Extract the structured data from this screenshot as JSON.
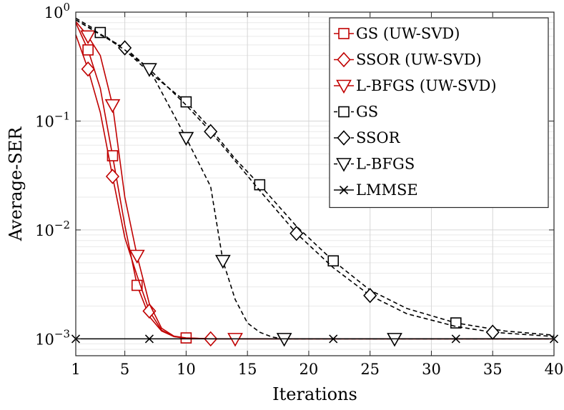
{
  "chart_data": {
    "type": "line",
    "xlabel": "Iterations",
    "ylabel": "Average-SER",
    "yscale": "log",
    "xlim": [
      1,
      40
    ],
    "ylim": [
      0.0007,
      1
    ],
    "grid": true,
    "legend_position": "top-right",
    "x_ticks": [
      1,
      5,
      10,
      15,
      20,
      25,
      30,
      35,
      40
    ],
    "x_tick_labels": [
      "1",
      "5",
      "10",
      "15",
      "20",
      "25",
      "30",
      "35",
      "40"
    ],
    "y_ticks": [
      0.001,
      0.01,
      0.1,
      1
    ],
    "y_tick_labels": [
      {
        "base": "10",
        "exp": "−3"
      },
      {
        "base": "10",
        "exp": "−2"
      },
      {
        "base": "10",
        "exp": "−1"
      },
      {
        "base": "10",
        "exp": "0"
      }
    ],
    "series": [
      {
        "name": "GS (UW-SVD)",
        "color": "#c00000",
        "dash": "solid",
        "marker": "square",
        "x": [
          1,
          2,
          3,
          4,
          5,
          6,
          7,
          8,
          9,
          10,
          12,
          14,
          16,
          20,
          25,
          30,
          35,
          40
        ],
        "y": [
          0.8,
          0.45,
          0.2,
          0.048,
          0.011,
          0.0031,
          0.0016,
          0.00118,
          0.00105,
          0.00102,
          0.001,
          0.001,
          0.001,
          0.001,
          0.001,
          0.001,
          0.001,
          0.001
        ],
        "marker_x": [
          2,
          4,
          6,
          10
        ],
        "marker_y": [
          0.45,
          0.048,
          0.0031,
          0.00102
        ]
      },
      {
        "name": "SSOR (UW-SVD)",
        "color": "#c00000",
        "dash": "solid",
        "marker": "diamond",
        "x": [
          1,
          2,
          3,
          4,
          5,
          6,
          7,
          8,
          9,
          10,
          12,
          14,
          16,
          20,
          25,
          30,
          35,
          40
        ],
        "y": [
          0.62,
          0.3,
          0.12,
          0.031,
          0.0085,
          0.0038,
          0.0018,
          0.0012,
          0.00105,
          0.00101,
          0.001,
          0.001,
          0.001,
          0.001,
          0.001,
          0.001,
          0.001,
          0.001
        ],
        "marker_x": [
          2,
          4,
          7,
          12
        ],
        "marker_y": [
          0.3,
          0.031,
          0.0018,
          0.001
        ]
      },
      {
        "name": "L-BFGS (UW-SVD)",
        "color": "#c00000",
        "dash": "solid",
        "marker": "triangle-down",
        "x": [
          1,
          2,
          3,
          4,
          5,
          6,
          7,
          8,
          9,
          10,
          12,
          14,
          16,
          20,
          25,
          30,
          35,
          40
        ],
        "y": [
          0.82,
          0.6,
          0.4,
          0.14,
          0.02,
          0.0058,
          0.0021,
          0.00125,
          0.00106,
          0.00102,
          0.001,
          0.001,
          0.001,
          0.001,
          0.001,
          0.001,
          0.001,
          0.001
        ],
        "marker_x": [
          2,
          4,
          6,
          14
        ],
        "marker_y": [
          0.6,
          0.14,
          0.0058,
          0.001
        ]
      },
      {
        "name": "GS",
        "color": "#000000",
        "dash": "dashed",
        "marker": "square",
        "x": [
          1,
          3,
          5,
          7,
          10,
          12,
          14,
          16,
          19,
          22,
          25,
          28,
          32,
          36,
          40
        ],
        "y": [
          0.88,
          0.65,
          0.45,
          0.28,
          0.15,
          0.085,
          0.045,
          0.026,
          0.0108,
          0.0052,
          0.0028,
          0.0019,
          0.0014,
          0.00118,
          0.00108
        ],
        "marker_x": [
          3,
          10,
          16,
          22,
          32
        ],
        "marker_y": [
          0.65,
          0.15,
          0.026,
          0.0052,
          0.0014
        ]
      },
      {
        "name": "SSOR",
        "color": "#000000",
        "dash": "dashed",
        "marker": "diamond",
        "x": [
          1,
          3,
          5,
          7,
          10,
          12,
          14,
          16,
          19,
          22,
          25,
          28,
          32,
          35,
          40
        ],
        "y": [
          0.85,
          0.62,
          0.47,
          0.3,
          0.14,
          0.08,
          0.043,
          0.023,
          0.0093,
          0.0045,
          0.0025,
          0.0017,
          0.0013,
          0.00115,
          0.00105
        ],
        "marker_x": [
          5,
          12,
          19,
          25,
          35
        ],
        "marker_y": [
          0.47,
          0.08,
          0.0093,
          0.0025,
          0.00115
        ]
      },
      {
        "name": "L-BFGS",
        "color": "#000000",
        "dash": "dashed",
        "marker": "triangle-down",
        "x": [
          1,
          3,
          5,
          7,
          10,
          12,
          13,
          14,
          15,
          16,
          17,
          18,
          20,
          25,
          27,
          30,
          35,
          40
        ],
        "y": [
          0.85,
          0.63,
          0.45,
          0.3,
          0.07,
          0.025,
          0.0052,
          0.0023,
          0.0014,
          0.00115,
          0.00104,
          0.001,
          0.001,
          0.001,
          0.001,
          0.001,
          0.001,
          0.001
        ],
        "marker_x": [
          7,
          10,
          13,
          18,
          27
        ],
        "marker_y": [
          0.3,
          0.07,
          0.0052,
          0.001,
          0.001
        ]
      },
      {
        "name": "LMMSE",
        "color": "#000000",
        "dash": "solid",
        "marker": "x",
        "x": [
          1,
          40
        ],
        "y": [
          0.001,
          0.001
        ],
        "marker_x": [
          1,
          7,
          22,
          32,
          40
        ],
        "marker_y": [
          0.001,
          0.001,
          0.001,
          0.001,
          0.001
        ]
      }
    ]
  }
}
